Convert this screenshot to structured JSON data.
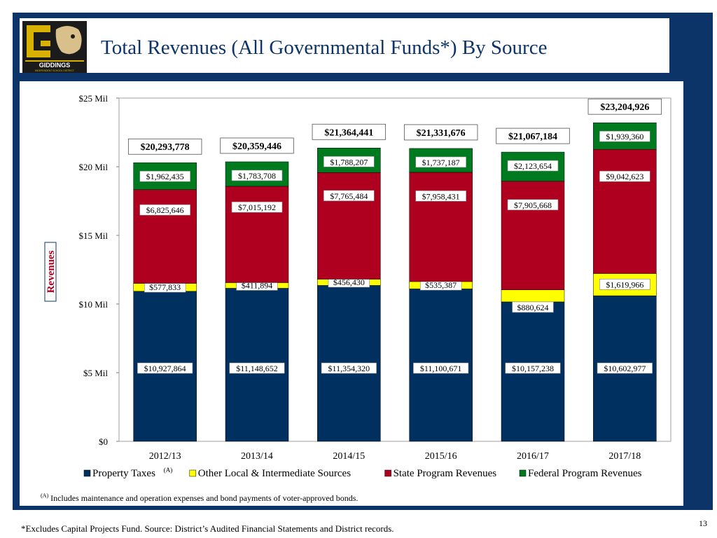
{
  "header": {
    "title": "Total Revenues (All Governmental Funds*) By Source",
    "logo_text": "GIDDINGS",
    "logo_subtext": "INDEPENDENT SCHOOL DISTRICT"
  },
  "colors": {
    "frame": "#0d3469",
    "property_taxes": "#00305f",
    "other_local": "#ffff00",
    "state_program": "#b00020",
    "federal_program": "#007a1f"
  },
  "chart_data": {
    "type": "bar",
    "stacked": true,
    "ylabel": "Revenues",
    "ylim": [
      0,
      25000000
    ],
    "yticks": [
      {
        "value": 0,
        "label": "$0"
      },
      {
        "value": 5000000,
        "label": "$5 Mil"
      },
      {
        "value": 10000000,
        "label": "$10 Mil"
      },
      {
        "value": 15000000,
        "label": "$15 Mil"
      },
      {
        "value": 20000000,
        "label": "$20 Mil"
      },
      {
        "value": 25000000,
        "label": "$25 Mil"
      }
    ],
    "categories": [
      "2012/13",
      "2013/14",
      "2014/15",
      "2015/16",
      "2016/17",
      "2017/18"
    ],
    "series": [
      {
        "name": "Property Taxes",
        "sup": "(A)",
        "color": "#00305f",
        "values": [
          10927864,
          11148652,
          11354320,
          11100671,
          10157238,
          10602977
        ],
        "labels": [
          "$10,927,864",
          "$11,148,652",
          "$11,354,320",
          "$11,100,671",
          "$10,157,238",
          "$10,602,977"
        ]
      },
      {
        "name": "Other Local & Intermediate Sources",
        "color": "#ffff00",
        "values": [
          577833,
          411894,
          456430,
          535387,
          880624,
          1619966
        ],
        "labels": [
          "$577,833",
          "$411,894",
          "$456,430",
          "$535,387",
          "$880,624",
          "$1,619,966"
        ]
      },
      {
        "name": "State Program Revenues",
        "color": "#b00020",
        "values": [
          6825646,
          7015192,
          7765484,
          7958431,
          7905668,
          9042623
        ],
        "labels": [
          "$6,825,646",
          "$7,015,192",
          "$7,765,484",
          "$7,958,431",
          "$7,905,668",
          "$9,042,623"
        ]
      },
      {
        "name": "Federal Program Revenues",
        "color": "#007a1f",
        "values": [
          1962435,
          1783708,
          1788207,
          1737187,
          2123654,
          1939360
        ],
        "labels": [
          "$1,962,435",
          "$1,783,708",
          "$1,788,207",
          "$1,737,187",
          "$2,123,654",
          "$1,939,360"
        ]
      }
    ],
    "totals": [
      20293778,
      20359446,
      21364441,
      21331676,
      21067184,
      23204926
    ],
    "total_labels": [
      "$20,293,778",
      "$20,359,446",
      "$21,364,441",
      "$21,331,676",
      "$21,067,184",
      "$23,204,926"
    ],
    "legend_position": "bottom"
  },
  "footnote": {
    "marker": "(A)",
    "text": "Includes maintenance and operation expenses and bond payments of voter-approved bonds."
  },
  "source_note": "*Excludes Capital Projects Fund. Source: District’s Audited Financial Statements and District records.",
  "page_number": "13"
}
